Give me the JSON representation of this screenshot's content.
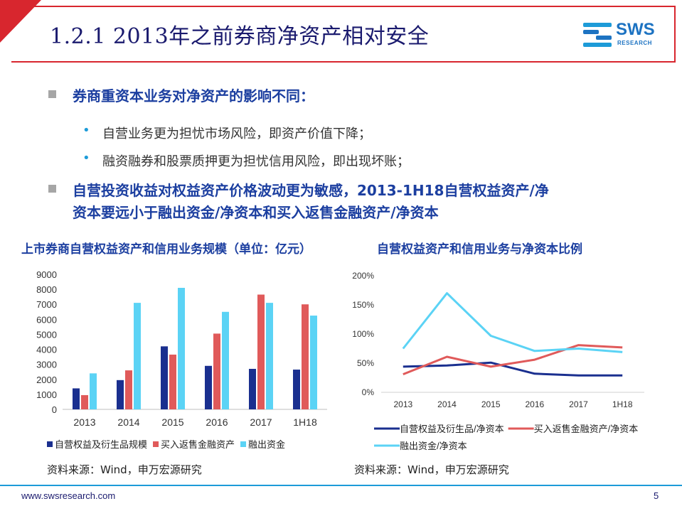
{
  "header": {
    "title": "1.2.1 2013年之前券商净资产相对安全",
    "logo_text": "SWS",
    "logo_sub": "RESEARCH"
  },
  "bullets": {
    "b1": "券商重资本业务对净资产的影响不同：",
    "b1_subs": [
      "自营业务更为担忧市场风险，即资产价值下降；",
      "融资融券和股票质押更为担忧信用风险，即出现坏账；"
    ],
    "b2_line1": "自营投资收益对权益资产价格波动更为敏感，2013-1H18自营权益资产/净",
    "b2_line2": "资本要远小于融出资金/净资本和买入返售金融资产/净资本"
  },
  "colors": {
    "navy": "#1a2f8f",
    "red": "#e05a5a",
    "cyan": "#5bd3f5",
    "grid": "#d9d9d9",
    "title_blue": "#1c3fa0"
  },
  "chart_data": [
    {
      "type": "bar",
      "title": "上市券商自营权益资产和信用业务规模（单位：亿元）",
      "categories": [
        "2013",
        "2014",
        "2015",
        "2016",
        "2017",
        "1H18"
      ],
      "ylim": [
        0,
        9000
      ],
      "yticks": [
        "0",
        "1000",
        "2000",
        "3000",
        "4000",
        "5000",
        "6000",
        "7000",
        "8000",
        "9000"
      ],
      "grid": false,
      "legend": "bottom",
      "series": [
        {
          "name": "自营权益及衍生品规模",
          "color": "#1a2f8f",
          "values": [
            1400,
            1950,
            4200,
            2900,
            2700,
            2650
          ]
        },
        {
          "name": "买入返售金融资产",
          "color": "#e05a5a",
          "values": [
            950,
            2600,
            3650,
            5050,
            7650,
            7000
          ]
        },
        {
          "name": "融出资金",
          "color": "#5bd3f5",
          "values": [
            2400,
            7100,
            8100,
            6500,
            7100,
            6250
          ]
        }
      ],
      "source": "资料来源：Wind，申万宏源研究"
    },
    {
      "type": "line",
      "title": "自营权益资产和信用业务与净资本比例",
      "categories": [
        "2013",
        "2014",
        "2015",
        "2016",
        "2017",
        "1H18"
      ],
      "ylim": [
        0,
        2.0
      ],
      "yticks": [
        "0%",
        "50%",
        "100%",
        "150%",
        "200%"
      ],
      "grid": false,
      "legend": "bottom",
      "series": [
        {
          "name": "自营权益及衍生品/净资本",
          "color": "#1a2f8f",
          "values": [
            0.44,
            0.46,
            0.51,
            0.32,
            0.29,
            0.29
          ]
        },
        {
          "name": "买入返售金融资产/净资本",
          "color": "#e05a5a",
          "values": [
            0.31,
            0.61,
            0.44,
            0.56,
            0.81,
            0.77
          ]
        },
        {
          "name": "融出资金/净资本",
          "color": "#5bd3f5",
          "values": [
            0.75,
            1.7,
            0.97,
            0.71,
            0.75,
            0.69
          ]
        }
      ],
      "source": "资料来源：Wind，申万宏源研究"
    }
  ],
  "footer": {
    "url": "www.swsresearch.com",
    "page": "5"
  }
}
